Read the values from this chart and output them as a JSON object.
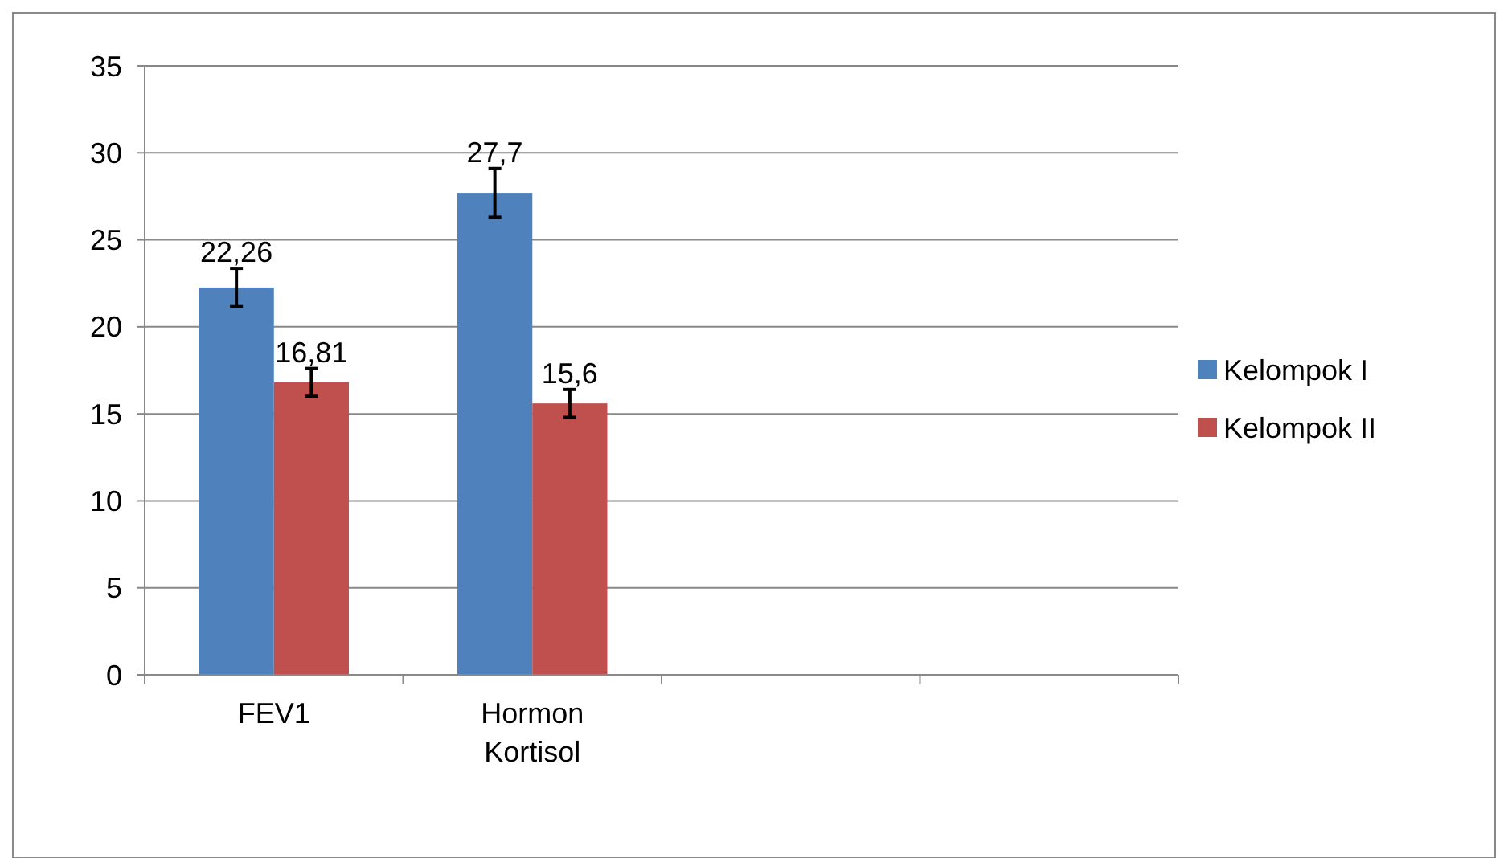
{
  "chart_data": {
    "type": "bar",
    "categories": [
      "FEV1",
      "Hormon Kortisol",
      null,
      null
    ],
    "series": [
      {
        "name": "Kelompok I",
        "color": "#4f81bd",
        "values": [
          22.26,
          27.7,
          null,
          null
        ],
        "errors": [
          1.1,
          1.4,
          null,
          null
        ],
        "value_labels": [
          "22,26",
          "27,7",
          null,
          null
        ]
      },
      {
        "name": "Kelompok II",
        "color": "#c0504d",
        "values": [
          16.81,
          15.6,
          null,
          null
        ],
        "errors": [
          0.8,
          0.8,
          null,
          null
        ],
        "value_labels": [
          "16,81",
          "15,6",
          null,
          null
        ]
      }
    ],
    "ylim": [
      0,
      35
    ],
    "yticks": [
      0,
      5,
      10,
      15,
      20,
      25,
      30,
      35
    ],
    "grid": "y",
    "legend": "right"
  }
}
